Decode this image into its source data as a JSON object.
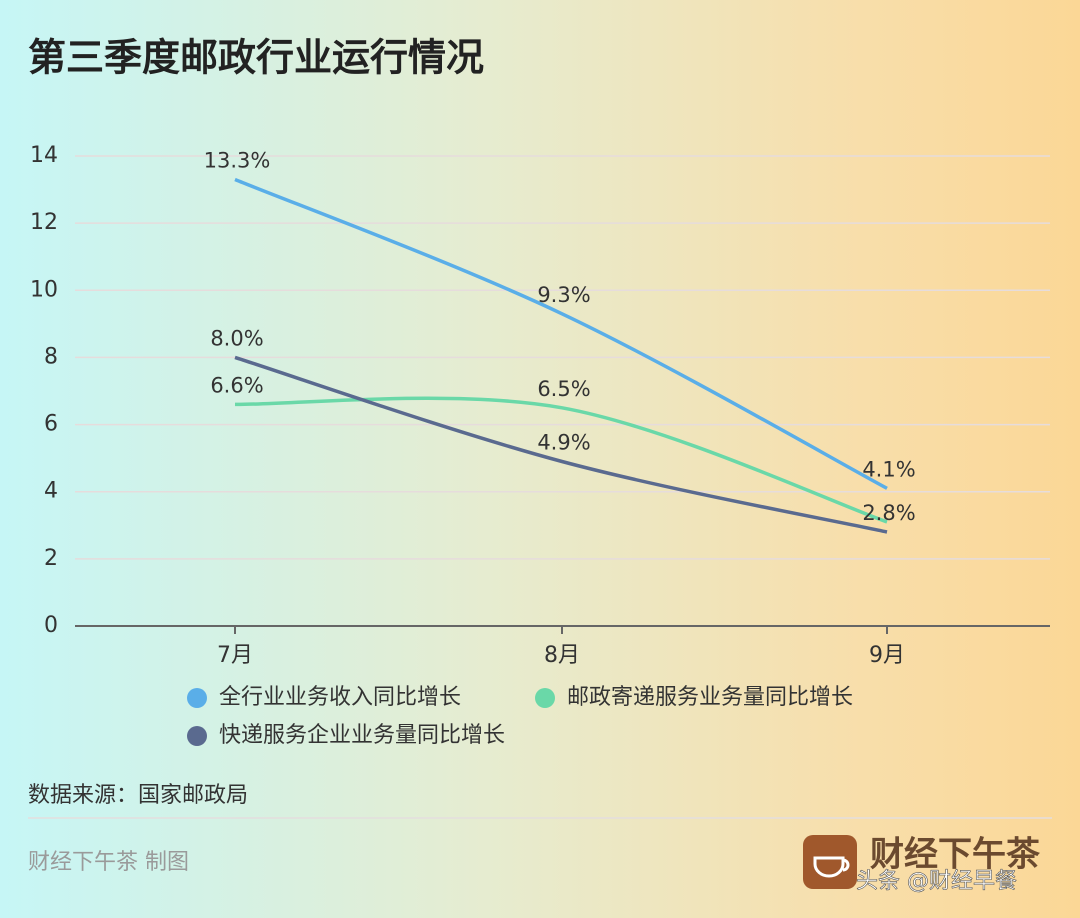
{
  "chart_data": {
    "type": "line",
    "title": "第三季度邮政行业运行情况",
    "categories": [
      "7月",
      "8月",
      "9月"
    ],
    "series": [
      {
        "name": "全行业业务收入同比增长",
        "color": "#5aaee8",
        "values": [
          13.3,
          9.3,
          4.1
        ],
        "value_labels": [
          "13.3%",
          "9.3%",
          "4.1%"
        ]
      },
      {
        "name": "邮政寄递服务业务量同比增长",
        "color": "#6ad8a8",
        "values": [
          6.6,
          6.5,
          3.1
        ],
        "value_labels": [
          "6.6%",
          "6.5%",
          null
        ]
      },
      {
        "name": "快递服务企业业务量同比增长",
        "color": "#5a6a8f",
        "values": [
          8.0,
          4.9,
          2.8
        ],
        "value_labels": [
          "8.0%",
          "4.9%",
          "2.8%"
        ]
      }
    ],
    "ylim": [
      0,
      14
    ],
    "yticks": [
      0,
      2,
      4,
      6,
      8,
      10,
      12,
      14
    ],
    "grid": true,
    "source": "数据来源：国家邮政局",
    "credit": "财经下午茶 制图",
    "brand": "财经下午茶",
    "watermark": "头条 @财经早餐"
  }
}
